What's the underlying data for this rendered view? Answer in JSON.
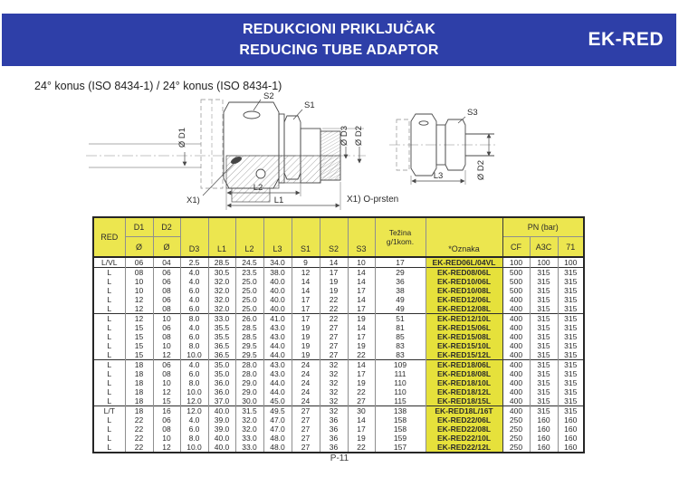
{
  "colors": {
    "header_bar": "#2e3fa8",
    "table_header_bg": "#ece64f",
    "oznaka_bg": "#e6e13b"
  },
  "header": {
    "title_line1": "REDUKCIONI PRIKLJUČAK",
    "title_line2": "REDUCING TUBE ADAPTOR",
    "product_code": "EK-RED"
  },
  "drawing": {
    "caption": "24° konus (ISO 8434-1) /  24° konus (ISO 8434-1)",
    "labels": {
      "s1": "S1",
      "s2": "S2",
      "s3": "S3",
      "d1": "Ø D1",
      "d2": "Ø D2",
      "d3": "Ø D3",
      "l1": "L1",
      "l2": "L2",
      "l3": "L3",
      "x1": "X1)"
    },
    "note": "X1) O-prsten"
  },
  "table": {
    "headers": {
      "red": "RED",
      "d1": "D1",
      "d2": "D2",
      "dia": "Ø",
      "d3": "D3",
      "l1": "L1",
      "l2": "L2",
      "l3": "L3",
      "s1": "S1",
      "s2": "S2",
      "s3": "S3",
      "tezina1": "Težina",
      "tezina2": "g/1kom.",
      "oznaka": "*Oznaka",
      "pn": "PN (bar)",
      "cf": "CF",
      "a3c": "A3C",
      "pn71": "71"
    },
    "groups": [
      [
        [
          "L/VL",
          "06",
          "04",
          "2.5",
          "28.5",
          "24.5",
          "34.0",
          "9",
          "14",
          "10",
          "17",
          "EK-RED06L/04VL",
          "100",
          "100",
          "100"
        ]
      ],
      [
        [
          "L",
          "08",
          "06",
          "4.0",
          "30.5",
          "23.5",
          "38.0",
          "12",
          "17",
          "14",
          "29",
          "EK-RED08/06L",
          "500",
          "315",
          "315"
        ],
        [
          "L",
          "10",
          "06",
          "4.0",
          "32.0",
          "25.0",
          "40.0",
          "14",
          "19",
          "14",
          "36",
          "EK-RED10/06L",
          "500",
          "315",
          "315"
        ],
        [
          "L",
          "10",
          "08",
          "6.0",
          "32.0",
          "25.0",
          "40.0",
          "14",
          "19",
          "17",
          "38",
          "EK-RED10/08L",
          "500",
          "315",
          "315"
        ],
        [
          "L",
          "12",
          "06",
          "4.0",
          "32.0",
          "25.0",
          "40.0",
          "17",
          "22",
          "14",
          "49",
          "EK-RED12/06L",
          "400",
          "315",
          "315"
        ],
        [
          "L",
          "12",
          "08",
          "6.0",
          "32.0",
          "25.0",
          "40.0",
          "17",
          "22",
          "17",
          "49",
          "EK-RED12/08L",
          "400",
          "315",
          "315"
        ]
      ],
      [
        [
          "L",
          "12",
          "10",
          "8.0",
          "33.0",
          "26.0",
          "41.0",
          "17",
          "22",
          "19",
          "51",
          "EK-RED12/10L",
          "400",
          "315",
          "315"
        ],
        [
          "L",
          "15",
          "06",
          "4.0",
          "35.5",
          "28.5",
          "43.0",
          "19",
          "27",
          "14",
          "81",
          "EK-RED15/06L",
          "400",
          "315",
          "315"
        ],
        [
          "L",
          "15",
          "08",
          "6.0",
          "35.5",
          "28.5",
          "43.0",
          "19",
          "27",
          "17",
          "85",
          "EK-RED15/08L",
          "400",
          "315",
          "315"
        ],
        [
          "L",
          "15",
          "10",
          "8.0",
          "36.5",
          "29.5",
          "44.0",
          "19",
          "27",
          "19",
          "83",
          "EK-RED15/10L",
          "400",
          "315",
          "315"
        ],
        [
          "L",
          "15",
          "12",
          "10.0",
          "36.5",
          "29.5",
          "44.0",
          "19",
          "27",
          "22",
          "83",
          "EK-RED15/12L",
          "400",
          "315",
          "315"
        ]
      ],
      [
        [
          "L",
          "18",
          "06",
          "4.0",
          "35.0",
          "28.0",
          "43.0",
          "24",
          "32",
          "14",
          "109",
          "EK-RED18/06L",
          "400",
          "315",
          "315"
        ],
        [
          "L",
          "18",
          "08",
          "6.0",
          "35.0",
          "28.0",
          "43.0",
          "24",
          "32",
          "17",
          "111",
          "EK-RED18/08L",
          "400",
          "315",
          "315"
        ],
        [
          "L",
          "18",
          "10",
          "8.0",
          "36.0",
          "29.0",
          "44.0",
          "24",
          "32",
          "19",
          "110",
          "EK-RED18/10L",
          "400",
          "315",
          "315"
        ],
        [
          "L",
          "18",
          "12",
          "10.0",
          "36.0",
          "29.0",
          "44.0",
          "24",
          "32",
          "22",
          "110",
          "EK-RED18/12L",
          "400",
          "315",
          "315"
        ],
        [
          "L",
          "18",
          "15",
          "12.0",
          "37.0",
          "30.0",
          "45.0",
          "24",
          "32",
          "27",
          "115",
          "EK-RED18/15L",
          "400",
          "315",
          "315"
        ]
      ],
      [
        [
          "L/T",
          "18",
          "16",
          "12.0",
          "40.0",
          "31.5",
          "49.5",
          "27",
          "32",
          "30",
          "138",
          "EK-RED18L/16T",
          "400",
          "315",
          "315"
        ],
        [
          "L",
          "22",
          "06",
          "4.0",
          "39.0",
          "32.0",
          "47.0",
          "27",
          "36",
          "14",
          "158",
          "EK-RED22/06L",
          "250",
          "160",
          "160"
        ],
        [
          "L",
          "22",
          "08",
          "6.0",
          "39.0",
          "32.0",
          "47.0",
          "27",
          "36",
          "17",
          "158",
          "EK-RED22/08L",
          "250",
          "160",
          "160"
        ],
        [
          "L",
          "22",
          "10",
          "8.0",
          "40.0",
          "33.0",
          "48.0",
          "27",
          "36",
          "19",
          "159",
          "EK-RED22/10L",
          "250",
          "160",
          "160"
        ],
        [
          "L",
          "22",
          "12",
          "10.0",
          "40.0",
          "33.0",
          "48.0",
          "27",
          "36",
          "22",
          "157",
          "EK-RED22/12L",
          "250",
          "160",
          "160"
        ]
      ]
    ]
  },
  "footer": {
    "page_number": "P-11"
  }
}
